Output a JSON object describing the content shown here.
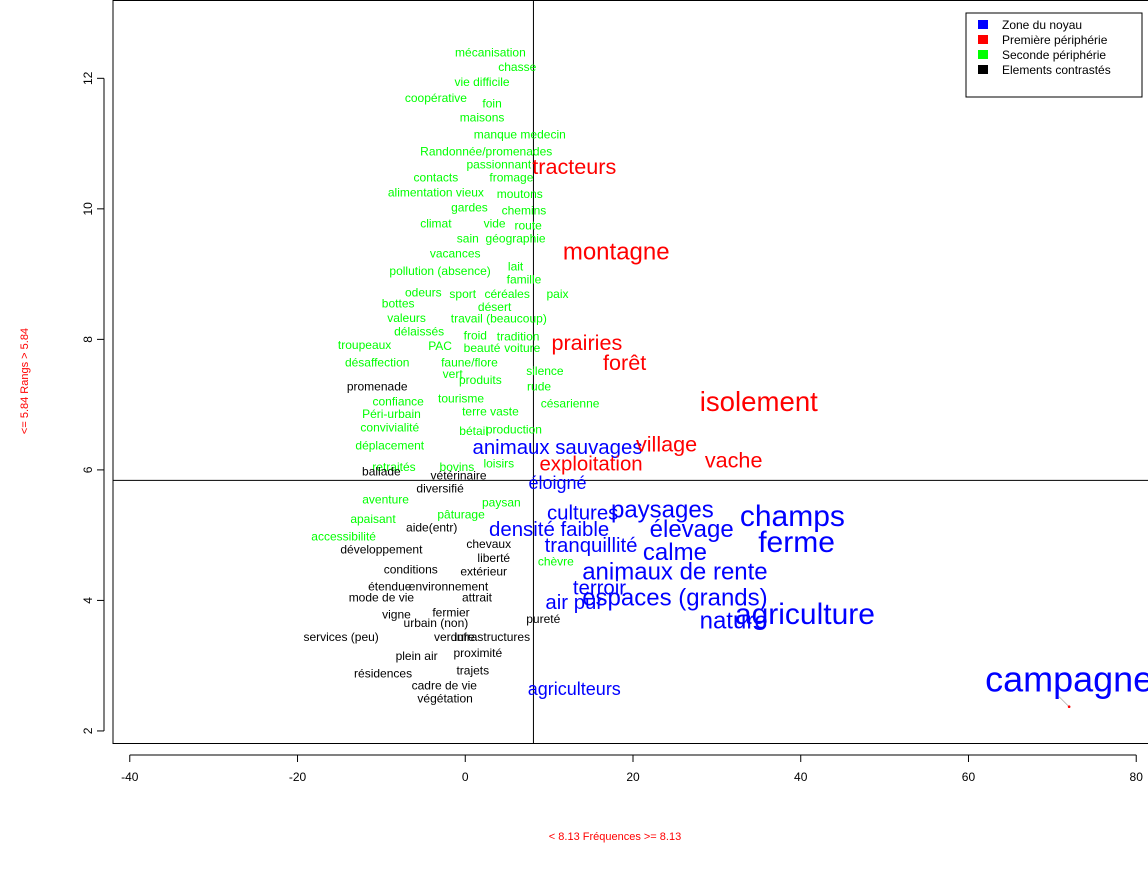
{
  "chart_data": {
    "type": "scatter",
    "xlabel": "< 8.13  Fréquences  >= 8.13",
    "ylabel": "<= 5.84  Rangs  > 5.84",
    "xlim": [
      -42,
      82
    ],
    "ylim": [
      1.8,
      13.2
    ],
    "x_ticks": [
      -40,
      -20,
      0,
      20,
      40,
      60,
      80
    ],
    "y_ticks": [
      2,
      4,
      6,
      8,
      10,
      12
    ],
    "x_tick_labels": [
      "-40",
      "-20",
      "0",
      "20",
      "40",
      "60",
      "80"
    ],
    "y_tick_labels": [
      "2",
      "4",
      "6",
      "8",
      "10",
      "12"
    ],
    "vline": 8.13,
    "hline": 5.84,
    "grid": false,
    "legend_position": "top-right",
    "legend": [
      {
        "label": "Zone du noyau",
        "color": "#0000ff",
        "group": "noyau"
      },
      {
        "label": "Première périphérie",
        "color": "#ff0000",
        "group": "p1"
      },
      {
        "label": "Seconde périphérie",
        "color": "#00ff00",
        "group": "p2"
      },
      {
        "label": "Elements contrastés",
        "color": "#000000",
        "group": "contraste"
      }
    ],
    "colors": {
      "noyau": "#0000ff",
      "p1": "#ff0000",
      "p2": "#00ff00",
      "contraste": "#000000"
    },
    "points": [
      {
        "text": "campagne",
        "x": 72,
        "y": 2.8,
        "group": "noyau",
        "size": 3
      },
      {
        "text": "agriculture",
        "x": 40.5,
        "y": 3.8,
        "group": "noyau",
        "size": 2.5
      },
      {
        "text": "champs",
        "x": 39,
        "y": 5.3,
        "group": "noyau",
        "size": 2.5
      },
      {
        "text": "ferme",
        "x": 39.5,
        "y": 4.9,
        "group": "noyau",
        "size": 2.5
      },
      {
        "text": "nature",
        "x": 32,
        "y": 3.7,
        "group": "noyau",
        "size": 2
      },
      {
        "text": "espaces (grands)",
        "x": 25,
        "y": 4.05,
        "group": "noyau",
        "size": 2
      },
      {
        "text": "animaux de rente",
        "x": 25,
        "y": 4.45,
        "group": "noyau",
        "size": 2
      },
      {
        "text": "élevage",
        "x": 27,
        "y": 5.1,
        "group": "noyau",
        "size": 2
      },
      {
        "text": "calme",
        "x": 25,
        "y": 4.75,
        "group": "noyau",
        "size": 2
      },
      {
        "text": "paysages",
        "x": 23.5,
        "y": 5.4,
        "group": "noyau",
        "size": 2
      },
      {
        "text": "cultures",
        "x": 14,
        "y": 5.35,
        "group": "noyau",
        "size": 1.7
      },
      {
        "text": "densité faible",
        "x": 10,
        "y": 5.1,
        "group": "noyau",
        "size": 1.7
      },
      {
        "text": "tranquillité",
        "x": 15,
        "y": 4.85,
        "group": "noyau",
        "size": 1.7
      },
      {
        "text": "terroir",
        "x": 16,
        "y": 4.2,
        "group": "noyau",
        "size": 1.7
      },
      {
        "text": "air pur",
        "x": 13,
        "y": 3.98,
        "group": "noyau",
        "size": 1.7
      },
      {
        "text": "agriculteurs",
        "x": 13,
        "y": 2.65,
        "group": "noyau",
        "size": 1.5
      },
      {
        "text": "éloigné",
        "x": 11,
        "y": 5.8,
        "group": "noyau",
        "size": 1.5
      },
      {
        "text": "animaux sauvages",
        "x": 11,
        "y": 6.35,
        "group": "noyau",
        "size": 1.7
      },
      {
        "text": "isolement",
        "x": 35,
        "y": 7.05,
        "group": "p1",
        "size": 2.3
      },
      {
        "text": "montagne",
        "x": 18,
        "y": 9.35,
        "group": "p1",
        "size": 2
      },
      {
        "text": "tracteurs",
        "x": 13,
        "y": 10.65,
        "group": "p1",
        "size": 1.8
      },
      {
        "text": "prairies",
        "x": 14.5,
        "y": 7.95,
        "group": "p1",
        "size": 1.8
      },
      {
        "text": "forêt",
        "x": 19,
        "y": 7.65,
        "group": "p1",
        "size": 1.8
      },
      {
        "text": "village",
        "x": 24,
        "y": 6.4,
        "group": "p1",
        "size": 1.8
      },
      {
        "text": "vache",
        "x": 32,
        "y": 6.15,
        "group": "p1",
        "size": 1.8
      },
      {
        "text": "exploitation",
        "x": 15,
        "y": 6.1,
        "group": "p1",
        "size": 1.7
      },
      {
        "text": "mécanisation",
        "x": 3,
        "y": 12.4,
        "group": "p2",
        "size": 1
      },
      {
        "text": "chasse",
        "x": 6.2,
        "y": 12.18,
        "group": "p2",
        "size": 1
      },
      {
        "text": "vie difficile",
        "x": 2,
        "y": 11.95,
        "group": "p2",
        "size": 1
      },
      {
        "text": "coopérative",
        "x": -3.5,
        "y": 11.7,
        "group": "p2",
        "size": 1
      },
      {
        "text": "foin",
        "x": 3.2,
        "y": 11.62,
        "group": "p2",
        "size": 1
      },
      {
        "text": "maisons",
        "x": 2,
        "y": 11.4,
        "group": "p2",
        "size": 1
      },
      {
        "text": "manque medecin",
        "x": 6.5,
        "y": 11.14,
        "group": "p2",
        "size": 1
      },
      {
        "text": "Randonnée/promenades",
        "x": 2.5,
        "y": 10.88,
        "group": "p2",
        "size": 1
      },
      {
        "text": "passionnant",
        "x": 4,
        "y": 10.68,
        "group": "p2",
        "size": 1
      },
      {
        "text": "contacts",
        "x": -3.5,
        "y": 10.48,
        "group": "p2",
        "size": 1
      },
      {
        "text": "fromage",
        "x": 5.5,
        "y": 10.48,
        "group": "p2",
        "size": 1
      },
      {
        "text": "alimentation vieux",
        "x": -3.5,
        "y": 10.25,
        "group": "p2",
        "size": 1
      },
      {
        "text": "moutons",
        "x": 6.5,
        "y": 10.23,
        "group": "p2",
        "size": 1
      },
      {
        "text": "gardes",
        "x": 0.5,
        "y": 10.02,
        "group": "p2",
        "size": 1
      },
      {
        "text": "chemins",
        "x": 7,
        "y": 9.98,
        "group": "p2",
        "size": 1
      },
      {
        "text": "climat",
        "x": -3.5,
        "y": 9.78,
        "group": "p2",
        "size": 1
      },
      {
        "text": "vide",
        "x": 3.5,
        "y": 9.78,
        "group": "p2",
        "size": 1
      },
      {
        "text": "route",
        "x": 7.5,
        "y": 9.75,
        "group": "p2",
        "size": 1
      },
      {
        "text": "sain",
        "x": 0.3,
        "y": 9.55,
        "group": "p2",
        "size": 1
      },
      {
        "text": "géographie",
        "x": 6,
        "y": 9.55,
        "group": "p2",
        "size": 1
      },
      {
        "text": "vacances",
        "x": -1.2,
        "y": 9.32,
        "group": "p2",
        "size": 1
      },
      {
        "text": "lait",
        "x": 6,
        "y": 9.12,
        "group": "p2",
        "size": 1
      },
      {
        "text": "pollution (absence)",
        "x": -3,
        "y": 9.05,
        "group": "p2",
        "size": 1
      },
      {
        "text": "famille",
        "x": 7,
        "y": 8.92,
        "group": "p2",
        "size": 1
      },
      {
        "text": "odeurs",
        "x": -5,
        "y": 8.72,
        "group": "p2",
        "size": 1
      },
      {
        "text": "sport",
        "x": -0.3,
        "y": 8.7,
        "group": "p2",
        "size": 1
      },
      {
        "text": "céréales",
        "x": 5,
        "y": 8.7,
        "group": "p2",
        "size": 1
      },
      {
        "text": "paix",
        "x": 11,
        "y": 8.7,
        "group": "p2",
        "size": 1
      },
      {
        "text": "bottes",
        "x": -8,
        "y": 8.55,
        "group": "p2",
        "size": 1
      },
      {
        "text": "désert",
        "x": 3.5,
        "y": 8.5,
        "group": "p2",
        "size": 1
      },
      {
        "text": "valeurs",
        "x": -7,
        "y": 8.33,
        "group": "p2",
        "size": 1
      },
      {
        "text": "travail (beaucoup)",
        "x": 4,
        "y": 8.32,
        "group": "p2",
        "size": 1
      },
      {
        "text": "délaissés",
        "x": -5.5,
        "y": 8.12,
        "group": "p2",
        "size": 1
      },
      {
        "text": "froid",
        "x": 1.2,
        "y": 8.06,
        "group": "p2",
        "size": 1
      },
      {
        "text": "tradition",
        "x": 6.3,
        "y": 8.05,
        "group": "p2",
        "size": 1
      },
      {
        "text": "troupeaux",
        "x": -12,
        "y": 7.92,
        "group": "p2",
        "size": 1
      },
      {
        "text": "PAC",
        "x": -3,
        "y": 7.9,
        "group": "p2",
        "size": 1
      },
      {
        "text": "beauté",
        "x": 2,
        "y": 7.87,
        "group": "p2",
        "size": 1
      },
      {
        "text": "voiture",
        "x": 6.8,
        "y": 7.87,
        "group": "p2",
        "size": 1
      },
      {
        "text": "désaffection",
        "x": -10.5,
        "y": 7.65,
        "group": "p2",
        "size": 1
      },
      {
        "text": "faune/flore",
        "x": 0.5,
        "y": 7.65,
        "group": "p2",
        "size": 1
      },
      {
        "text": "silence",
        "x": 9.5,
        "y": 7.52,
        "group": "p2",
        "size": 1
      },
      {
        "text": "vert",
        "x": -1.5,
        "y": 7.47,
        "group": "p2",
        "size": 1
      },
      {
        "text": "produits",
        "x": 1.8,
        "y": 7.38,
        "group": "p2",
        "size": 1
      },
      {
        "text": "rude",
        "x": 8.8,
        "y": 7.28,
        "group": "p2",
        "size": 1
      },
      {
        "text": "confiance",
        "x": -8,
        "y": 7.05,
        "group": "p2",
        "size": 1
      },
      {
        "text": "tourisme",
        "x": -0.5,
        "y": 7.1,
        "group": "p2",
        "size": 1
      },
      {
        "text": "césarienne",
        "x": 12.5,
        "y": 7.02,
        "group": "p2",
        "size": 1
      },
      {
        "text": "Péri-urbain",
        "x": -8.8,
        "y": 6.86,
        "group": "p2",
        "size": 1
      },
      {
        "text": "terre vaste",
        "x": 3,
        "y": 6.9,
        "group": "p2",
        "size": 1
      },
      {
        "text": "convivialité",
        "x": -9,
        "y": 6.65,
        "group": "p2",
        "size": 1
      },
      {
        "text": "bétail",
        "x": 1,
        "y": 6.6,
        "group": "p2",
        "size": 1
      },
      {
        "text": "production",
        "x": 5.8,
        "y": 6.62,
        "group": "p2",
        "size": 1
      },
      {
        "text": "déplacement",
        "x": -9,
        "y": 6.38,
        "group": "p2",
        "size": 1
      },
      {
        "text": "retraités",
        "x": -8.5,
        "y": 6.05,
        "group": "p2",
        "size": 1
      },
      {
        "text": "bovins",
        "x": -1,
        "y": 6.05,
        "group": "p2",
        "size": 1
      },
      {
        "text": "loisirs",
        "x": 4,
        "y": 6.1,
        "group": "p2",
        "size": 1
      },
      {
        "text": "aventure",
        "x": -9.5,
        "y": 5.55,
        "group": "p2",
        "size": 1
      },
      {
        "text": "paysan",
        "x": 4.3,
        "y": 5.5,
        "group": "p2",
        "size": 1
      },
      {
        "text": "pâturage",
        "x": -0.5,
        "y": 5.32,
        "group": "p2",
        "size": 1
      },
      {
        "text": "apaisant",
        "x": -11,
        "y": 5.25,
        "group": "p2",
        "size": 1
      },
      {
        "text": "accessibilité",
        "x": -14.5,
        "y": 4.98,
        "group": "p2",
        "size": 1
      },
      {
        "text": "chèvre",
        "x": 10.8,
        "y": 4.6,
        "group": "p2",
        "size": 1
      },
      {
        "text": "promenade",
        "x": -10.5,
        "y": 7.28,
        "group": "contraste",
        "size": 1
      },
      {
        "text": "ballade",
        "x": -10,
        "y": 5.98,
        "group": "contraste",
        "size": 1
      },
      {
        "text": "vétérinaire",
        "x": -0.8,
        "y": 5.92,
        "group": "contraste",
        "size": 1
      },
      {
        "text": "diversifié",
        "x": -3,
        "y": 5.72,
        "group": "contraste",
        "size": 1
      },
      {
        "text": "aide(entr)",
        "x": -4,
        "y": 5.12,
        "group": "contraste",
        "size": 1
      },
      {
        "text": "développement",
        "x": -10,
        "y": 4.78,
        "group": "contraste",
        "size": 1
      },
      {
        "text": "chevaux",
        "x": 2.8,
        "y": 4.87,
        "group": "contraste",
        "size": 1
      },
      {
        "text": "liberté",
        "x": 3.4,
        "y": 4.65,
        "group": "contraste",
        "size": 1
      },
      {
        "text": "conditions",
        "x": -6.5,
        "y": 4.48,
        "group": "contraste",
        "size": 1
      },
      {
        "text": "extérieur",
        "x": 2.2,
        "y": 4.45,
        "group": "contraste",
        "size": 1
      },
      {
        "text": "étendue",
        "x": -9,
        "y": 4.22,
        "group": "contraste",
        "size": 1
      },
      {
        "text": "environnement",
        "x": -2,
        "y": 4.22,
        "group": "contraste",
        "size": 1
      },
      {
        "text": "mode de vie",
        "x": -10,
        "y": 4.05,
        "group": "contraste",
        "size": 1
      },
      {
        "text": "attrait",
        "x": 1.4,
        "y": 4.05,
        "group": "contraste",
        "size": 1
      },
      {
        "text": "vigne",
        "x": -8.2,
        "y": 3.79,
        "group": "contraste",
        "size": 1
      },
      {
        "text": "fermier",
        "x": -1.7,
        "y": 3.82,
        "group": "contraste",
        "size": 1
      },
      {
        "text": "urbain (non)",
        "x": -3.5,
        "y": 3.66,
        "group": "contraste",
        "size": 1
      },
      {
        "text": "pureté",
        "x": 9.3,
        "y": 3.72,
        "group": "contraste",
        "size": 1
      },
      {
        "text": "services (peu)",
        "x": -14.8,
        "y": 3.44,
        "group": "contraste",
        "size": 1
      },
      {
        "text": "verdure",
        "x": -1.3,
        "y": 3.44,
        "group": "contraste",
        "size": 1
      },
      {
        "text": "infrastructures",
        "x": 3.2,
        "y": 3.44,
        "group": "contraste",
        "size": 1
      },
      {
        "text": "proximité",
        "x": 1.5,
        "y": 3.2,
        "group": "contraste",
        "size": 1
      },
      {
        "text": "plein air",
        "x": -5.8,
        "y": 3.15,
        "group": "contraste",
        "size": 1
      },
      {
        "text": "trajets",
        "x": 0.9,
        "y": 2.93,
        "group": "contraste",
        "size": 1
      },
      {
        "text": "résidences",
        "x": -9.8,
        "y": 2.88,
        "group": "contraste",
        "size": 1
      },
      {
        "text": "cadre de vie",
        "x": -2.5,
        "y": 2.7,
        "group": "contraste",
        "size": 1
      },
      {
        "text": "végétation",
        "x": -2.4,
        "y": 2.5,
        "group": "contraste",
        "size": 1
      }
    ]
  }
}
